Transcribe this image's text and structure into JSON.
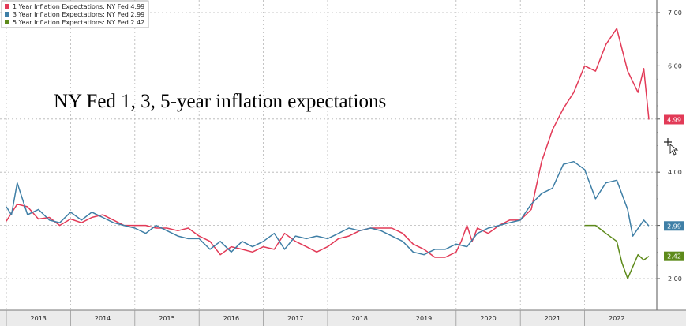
{
  "chart_data": {
    "type": "line",
    "title": "NY Fed 1, 3, 5-year inflation expectations",
    "ylim": [
      1.7,
      7.15
    ],
    "y_ticks": [
      2.0,
      3.0,
      4.0,
      5.0,
      6.0,
      7.0
    ],
    "y_tick_labels": [
      "2.00",
      "3.00",
      "4.00",
      "5.00",
      "6.00",
      "7.00"
    ],
    "x_range": [
      2013.0,
      2023.0
    ],
    "x_year_ticks": [
      2013,
      2014,
      2015,
      2016,
      2017,
      2018,
      2019,
      2020,
      2021,
      2022
    ],
    "x_tick_labels": [
      "2013",
      "2014",
      "2015",
      "2016",
      "2017",
      "2018",
      "2019",
      "2020",
      "2021",
      "2022"
    ],
    "grid": true,
    "legend_position": "top-left",
    "colors": {
      "one_year": "#e23a57",
      "three_year": "#3f7fa6",
      "five_year": "#5d8a1a"
    },
    "series": [
      {
        "name": "1 Year Inflation Expectations: NY Fed",
        "legend_label": "1 Year Inflation Expectations:  NY Fed  4.99",
        "last_label": "4.99",
        "points": [
          [
            2013.0,
            3.08
          ],
          [
            2013.17,
            3.4
          ],
          [
            2013.33,
            3.35
          ],
          [
            2013.5,
            3.12
          ],
          [
            2013.67,
            3.15
          ],
          [
            2013.83,
            3.0
          ],
          [
            2014.0,
            3.12
          ],
          [
            2014.17,
            3.05
          ],
          [
            2014.33,
            3.15
          ],
          [
            2014.5,
            3.2
          ],
          [
            2014.67,
            3.1
          ],
          [
            2014.83,
            3.0
          ],
          [
            2015.0,
            3.0
          ],
          [
            2015.17,
            3.0
          ],
          [
            2015.33,
            2.95
          ],
          [
            2015.5,
            2.95
          ],
          [
            2015.67,
            2.9
          ],
          [
            2015.83,
            2.95
          ],
          [
            2016.0,
            2.8
          ],
          [
            2016.17,
            2.7
          ],
          [
            2016.33,
            2.45
          ],
          [
            2016.5,
            2.6
          ],
          [
            2016.67,
            2.55
          ],
          [
            2016.83,
            2.5
          ],
          [
            2017.0,
            2.6
          ],
          [
            2017.17,
            2.55
          ],
          [
            2017.33,
            2.85
          ],
          [
            2017.5,
            2.7
          ],
          [
            2017.67,
            2.6
          ],
          [
            2017.83,
            2.5
          ],
          [
            2018.0,
            2.6
          ],
          [
            2018.17,
            2.75
          ],
          [
            2018.33,
            2.8
          ],
          [
            2018.5,
            2.9
          ],
          [
            2018.67,
            2.95
          ],
          [
            2018.83,
            2.95
          ],
          [
            2019.0,
            2.95
          ],
          [
            2019.17,
            2.85
          ],
          [
            2019.33,
            2.65
          ],
          [
            2019.5,
            2.55
          ],
          [
            2019.67,
            2.4
          ],
          [
            2019.83,
            2.4
          ],
          [
            2020.0,
            2.5
          ],
          [
            2020.08,
            2.7
          ],
          [
            2020.17,
            3.0
          ],
          [
            2020.25,
            2.7
          ],
          [
            2020.33,
            2.95
          ],
          [
            2020.5,
            2.85
          ],
          [
            2020.67,
            3.0
          ],
          [
            2020.83,
            3.1
          ],
          [
            2021.0,
            3.1
          ],
          [
            2021.17,
            3.3
          ],
          [
            2021.33,
            4.2
          ],
          [
            2021.5,
            4.8
          ],
          [
            2021.67,
            5.2
          ],
          [
            2021.83,
            5.5
          ],
          [
            2022.0,
            6.0
          ],
          [
            2022.17,
            5.9
          ],
          [
            2022.33,
            6.4
          ],
          [
            2022.5,
            6.7
          ],
          [
            2022.67,
            5.9
          ],
          [
            2022.83,
            5.5
          ],
          [
            2022.92,
            5.95
          ],
          [
            2023.0,
            4.99
          ]
        ]
      },
      {
        "name": "3 Year Inflation Expectations: NY Fed",
        "legend_label": "3 Year Inflation Expectations:  NY Fed  2.99",
        "last_label": "2.99",
        "points": [
          [
            2013.0,
            3.35
          ],
          [
            2013.08,
            3.2
          ],
          [
            2013.17,
            3.8
          ],
          [
            2013.33,
            3.2
          ],
          [
            2013.5,
            3.3
          ],
          [
            2013.67,
            3.1
          ],
          [
            2013.83,
            3.05
          ],
          [
            2014.0,
            3.25
          ],
          [
            2014.17,
            3.1
          ],
          [
            2014.33,
            3.25
          ],
          [
            2014.5,
            3.15
          ],
          [
            2014.67,
            3.05
          ],
          [
            2014.83,
            3.0
          ],
          [
            2015.0,
            2.95
          ],
          [
            2015.17,
            2.85
          ],
          [
            2015.33,
            3.0
          ],
          [
            2015.5,
            2.9
          ],
          [
            2015.67,
            2.8
          ],
          [
            2015.83,
            2.75
          ],
          [
            2016.0,
            2.75
          ],
          [
            2016.17,
            2.55
          ],
          [
            2016.33,
            2.7
          ],
          [
            2016.5,
            2.5
          ],
          [
            2016.67,
            2.7
          ],
          [
            2016.83,
            2.6
          ],
          [
            2017.0,
            2.7
          ],
          [
            2017.17,
            2.85
          ],
          [
            2017.33,
            2.55
          ],
          [
            2017.5,
            2.8
          ],
          [
            2017.67,
            2.75
          ],
          [
            2017.83,
            2.8
          ],
          [
            2018.0,
            2.75
          ],
          [
            2018.17,
            2.85
          ],
          [
            2018.33,
            2.95
          ],
          [
            2018.5,
            2.9
          ],
          [
            2018.67,
            2.95
          ],
          [
            2018.83,
            2.9
          ],
          [
            2019.0,
            2.8
          ],
          [
            2019.17,
            2.7
          ],
          [
            2019.33,
            2.5
          ],
          [
            2019.5,
            2.45
          ],
          [
            2019.67,
            2.55
          ],
          [
            2019.83,
            2.55
          ],
          [
            2020.0,
            2.65
          ],
          [
            2020.17,
            2.6
          ],
          [
            2020.33,
            2.85
          ],
          [
            2020.5,
            2.95
          ],
          [
            2020.67,
            3.0
          ],
          [
            2020.83,
            3.05
          ],
          [
            2021.0,
            3.1
          ],
          [
            2021.17,
            3.4
          ],
          [
            2021.33,
            3.6
          ],
          [
            2021.5,
            3.7
          ],
          [
            2021.67,
            4.15
          ],
          [
            2021.83,
            4.2
          ],
          [
            2022.0,
            4.05
          ],
          [
            2022.17,
            3.5
          ],
          [
            2022.33,
            3.8
          ],
          [
            2022.5,
            3.85
          ],
          [
            2022.67,
            3.3
          ],
          [
            2022.75,
            2.8
          ],
          [
            2022.92,
            3.1
          ],
          [
            2023.0,
            2.99
          ]
        ]
      },
      {
        "name": "5 Year Inflation Expectations: NY Fed",
        "legend_label": "5 Year Inflation Expectations:  NY Fed  2.42",
        "last_label": "2.42",
        "points": [
          [
            2022.0,
            3.0
          ],
          [
            2022.17,
            3.0
          ],
          [
            2022.33,
            2.85
          ],
          [
            2022.5,
            2.7
          ],
          [
            2022.58,
            2.3
          ],
          [
            2022.67,
            2.0
          ],
          [
            2022.83,
            2.45
          ],
          [
            2022.92,
            2.35
          ],
          [
            2023.0,
            2.42
          ]
        ]
      }
    ]
  }
}
